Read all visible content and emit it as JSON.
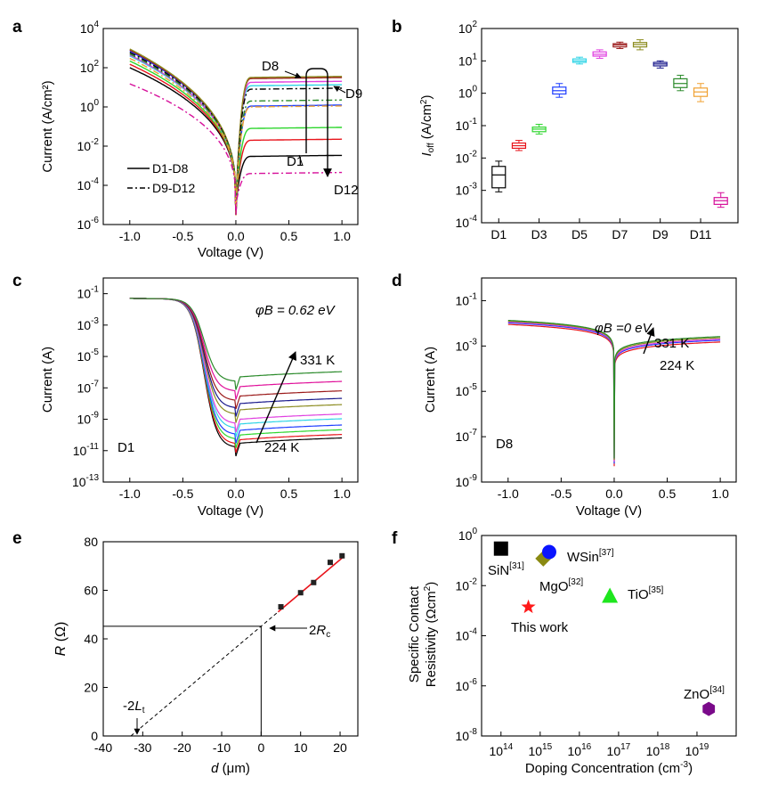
{
  "panels": {
    "a": {
      "letter": "a"
    },
    "b": {
      "letter": "b"
    },
    "c": {
      "letter": "c"
    },
    "d": {
      "letter": "d"
    },
    "e": {
      "letter": "e"
    },
    "f": {
      "letter": "f"
    }
  },
  "chart_data": [
    {
      "panel": "a",
      "type": "line",
      "xlabel": "Voltage (V)",
      "ylabel": "Current (A/cm²)",
      "ylog": true,
      "xlim": [
        -1.25,
        1.15
      ],
      "ylim": [
        1e-06,
        10000.0
      ],
      "xticks": [
        -1.0,
        -0.5,
        0.0,
        0.5,
        1.0
      ],
      "yticks": [
        "10^4",
        "10^2",
        "10^0",
        "10^-2",
        "10^-4",
        "10^-6"
      ],
      "legend": [
        "D1-D8",
        "D9-D12"
      ],
      "annotations": [
        "D8",
        "D9",
        "D1",
        "D12"
      ],
      "series": [
        {
          "name": "D1",
          "style": "solid",
          "color": "#000000",
          "rev_at_minus1": 100,
          "fwd_at_1": 0.003
        },
        {
          "name": "D2",
          "style": "solid",
          "color": "#e8141b",
          "rev_at_minus1": 150,
          "fwd_at_1": 0.02
        },
        {
          "name": "D3",
          "style": "solid",
          "color": "#2ed62e",
          "rev_at_minus1": 220,
          "fwd_at_1": 0.08
        },
        {
          "name": "D4",
          "style": "solid",
          "color": "#1f3fff",
          "rev_at_minus1": 700,
          "fwd_at_1": 1.1
        },
        {
          "name": "D5",
          "style": "solid",
          "color": "#2fd4e6",
          "rev_at_minus1": 400,
          "fwd_at_1": 12
        },
        {
          "name": "D6",
          "style": "solid",
          "color": "#e040e0",
          "rev_at_minus1": 450,
          "fwd_at_1": 18
        },
        {
          "name": "D7",
          "style": "solid",
          "color": "#9b1a1a",
          "rev_at_minus1": 800,
          "fwd_at_1": 28
        },
        {
          "name": "D8",
          "style": "solid",
          "color": "#8c8c20",
          "rev_at_minus1": 900,
          "fwd_at_1": 32
        },
        {
          "name": "D9",
          "style": "dashdot",
          "color": "#000000",
          "rev_at_minus1": 600,
          "fwd_at_1": 8
        },
        {
          "name": "D10",
          "style": "dashdot",
          "color": "#2a8a2a",
          "rev_at_minus1": 500,
          "fwd_at_1": 2
        },
        {
          "name": "D11",
          "style": "dashdot",
          "color": "#f0a030",
          "rev_at_minus1": 300,
          "fwd_at_1": 1
        },
        {
          "name": "D12",
          "style": "dashdot",
          "color": "#d60f9a",
          "rev_at_minus1": 15,
          "fwd_at_1": 0.0004
        }
      ]
    },
    {
      "panel": "b",
      "type": "box",
      "ylabel": "Ioff (A/cm²)",
      "ylog": true,
      "ylim": [
        0.0001,
        100.0
      ],
      "xtick_labels": [
        "D1",
        "D3",
        "D5",
        "D7",
        "D9",
        "D11"
      ],
      "yticks": [
        "10^2",
        "10^1",
        "10^0",
        "10^-1",
        "10^-2",
        "10^-3",
        "10^-4"
      ],
      "categories": [
        "D1",
        "D2",
        "D3",
        "D4",
        "D5",
        "D6",
        "D7",
        "D8",
        "D9",
        "D10",
        "D11",
        "D12"
      ],
      "boxes": [
        {
          "name": "D1",
          "color": "#000000",
          "min": 0.0009,
          "q1": 0.0012,
          "median": 0.003,
          "q3": 0.0055,
          "max": 0.008
        },
        {
          "name": "D2",
          "color": "#e8141b",
          "min": 0.017,
          "q1": 0.02,
          "median": 0.024,
          "q3": 0.029,
          "max": 0.035
        },
        {
          "name": "D3",
          "color": "#2ed62e",
          "min": 0.055,
          "q1": 0.065,
          "median": 0.078,
          "q3": 0.09,
          "max": 0.11
        },
        {
          "name": "D4",
          "color": "#1f3fff",
          "min": 0.75,
          "q1": 0.95,
          "median": 1.2,
          "q3": 1.55,
          "max": 2.0
        },
        {
          "name": "D5",
          "color": "#2fd4e6",
          "min": 8.0,
          "q1": 9.0,
          "median": 10.0,
          "q3": 11.5,
          "max": 13.0
        },
        {
          "name": "D6",
          "color": "#e040e0",
          "min": 12.0,
          "q1": 14.0,
          "median": 16.0,
          "q3": 19.0,
          "max": 22.0
        },
        {
          "name": "D7",
          "color": "#9b1a1a",
          "min": 24.0,
          "q1": 27.0,
          "median": 31.0,
          "q3": 34.0,
          "max": 38.0
        },
        {
          "name": "D8",
          "color": "#8c8c20",
          "min": 22.0,
          "q1": 27.0,
          "median": 32.0,
          "q3": 37.0,
          "max": 45.0
        },
        {
          "name": "D9",
          "color": "#1a1a8c",
          "min": 6.0,
          "q1": 7.0,
          "median": 8.0,
          "q3": 9.0,
          "max": 10.0
        },
        {
          "name": "D10",
          "color": "#2a8a2a",
          "min": 1.2,
          "q1": 1.5,
          "median": 2.0,
          "q3": 2.8,
          "max": 3.6
        },
        {
          "name": "D11",
          "color": "#f0a030",
          "min": 0.55,
          "q1": 0.8,
          "median": 1.1,
          "q3": 1.45,
          "max": 2.0
        },
        {
          "name": "D12",
          "color": "#d60f9a",
          "min": 0.0003,
          "q1": 0.00037,
          "median": 0.00048,
          "q3": 0.0006,
          "max": 0.00085
        }
      ]
    },
    {
      "panel": "c",
      "type": "line",
      "xlabel": "Voltage (V)",
      "ylabel": "Current (A)",
      "ylog": true,
      "xlim": [
        -1.25,
        1.15
      ],
      "ylim": [
        1e-13,
        1
      ],
      "xticks": [
        -1.0,
        -0.5,
        0.0,
        0.5,
        1.0
      ],
      "yticks": [
        "10^-1",
        "10^-3",
        "10^-5",
        "10^-7",
        "10^-9",
        "10^-11",
        "10^-13"
      ],
      "annotations": [
        "φB = 0.62 eV",
        "331 K",
        "224 K",
        "D1"
      ],
      "temperatures_K": [
        224,
        331
      ],
      "series": [
        {
          "color": "#000000",
          "plateau": 3e-11
        },
        {
          "color": "#e8141b",
          "plateau": 5e-11
        },
        {
          "color": "#2ed62e",
          "plateau": 1e-10
        },
        {
          "color": "#1f3fff",
          "plateau": 2e-10
        },
        {
          "color": "#2fd4e6",
          "plateau": 5e-10
        },
        {
          "color": "#e040e0",
          "plateau": 1e-09
        },
        {
          "color": "#8c8c20",
          "plateau": 4e-09
        },
        {
          "color": "#1a1a8c",
          "plateau": 1e-08
        },
        {
          "color": "#9b1a1a",
          "plateau": 3e-08
        },
        {
          "color": "#e0109a",
          "plateau": 1.2e-07
        },
        {
          "color": "#2a8a2a",
          "plateau": 5e-07
        }
      ]
    },
    {
      "panel": "d",
      "type": "line",
      "xlabel": "Voltage (V)",
      "ylabel": "Current (A)",
      "ylog": true,
      "xlim": [
        -1.25,
        1.15
      ],
      "ylim": [
        1e-09,
        1
      ],
      "xticks": [
        -1.0,
        -0.5,
        0.0,
        0.5,
        1.0
      ],
      "yticks": [
        "10^-1",
        "10^-3",
        "10^-5",
        "10^-7",
        "10^-9"
      ],
      "annotations": [
        "φB =0 eV",
        "331 K",
        "224 K",
        "D8"
      ],
      "series": [
        {
          "color": "#e8141b",
          "rev_at_minus1": 0.009,
          "fwd_at_1": 0.0015
        },
        {
          "color": "#1f3fff",
          "rev_at_minus1": 0.0105,
          "fwd_at_1": 0.0018
        },
        {
          "color": "#e040e0",
          "rev_at_minus1": 0.0115,
          "fwd_at_1": 0.002
        },
        {
          "color": "#8c8c20",
          "rev_at_minus1": 0.0125,
          "fwd_at_1": 0.0023
        },
        {
          "color": "#2a8a2a",
          "rev_at_minus1": 0.0135,
          "fwd_at_1": 0.0026
        }
      ]
    },
    {
      "panel": "e",
      "type": "scatter",
      "xlabel": "d (μm)",
      "ylabel": "R (Ω)",
      "xlim": [
        -40,
        25
      ],
      "ylim": [
        0,
        80
      ],
      "xticks": [
        -40,
        -30,
        -20,
        -10,
        0,
        10,
        20
      ],
      "yticks": [
        0,
        20,
        40,
        60,
        80
      ],
      "points": [
        {
          "x": 5,
          "y": 53.2
        },
        {
          "x": 10,
          "y": 59.0
        },
        {
          "x": 13.3,
          "y": 63.2
        },
        {
          "x": 17.5,
          "y": 71.5
        },
        {
          "x": 20.5,
          "y": 74.2
        }
      ],
      "fit": {
        "slope": 1.37,
        "intercept": 45.2
      },
      "annotations": [
        "2Rc",
        "-2Lt"
      ]
    },
    {
      "panel": "f",
      "type": "scatter",
      "xlabel": "Doping Concentration (cm⁻³)",
      "ylabel": "Specific Contact Resistivity (Ωcm²)",
      "xlog": true,
      "ylog": true,
      "xlim": [
        32000000000000.0,
        1e+20
      ],
      "ylim": [
        1e-08,
        1
      ],
      "xticks": [
        "10^14",
        "10^15",
        "10^16",
        "10^17",
        "10^18",
        "10^19"
      ],
      "yticks": [
        "10^0",
        "10^-2",
        "10^-4",
        "10^-6",
        "10^-8"
      ],
      "points": [
        {
          "label": "SiN",
          "ref": "[31]",
          "x": 100000000000000.0,
          "y": 0.3,
          "marker": "square",
          "color": "#000000"
        },
        {
          "label": "MgO",
          "ref": "[32]",
          "x": 1200000000000000.0,
          "y": 0.12,
          "marker": "diamond",
          "color": "#8a8a12"
        },
        {
          "label": "WSin",
          "ref": "[37]",
          "x": 1700000000000000.0,
          "y": 0.22,
          "marker": "circle",
          "color": "#0a14ff"
        },
        {
          "label": "TiO",
          "ref": "[35]",
          "x": 6e+16,
          "y": 0.004,
          "marker": "triangle",
          "color": "#1ee61e"
        },
        {
          "label": "ZnO",
          "ref": "[34]",
          "x": 2e+19,
          "y": 1.2e-07,
          "marker": "hexagon",
          "color": "#7a0a8a"
        },
        {
          "label": "This work",
          "ref": "",
          "x": 500000000000000.0,
          "y": 0.0014,
          "marker": "star",
          "color": "#ff1a1a"
        }
      ]
    }
  ]
}
